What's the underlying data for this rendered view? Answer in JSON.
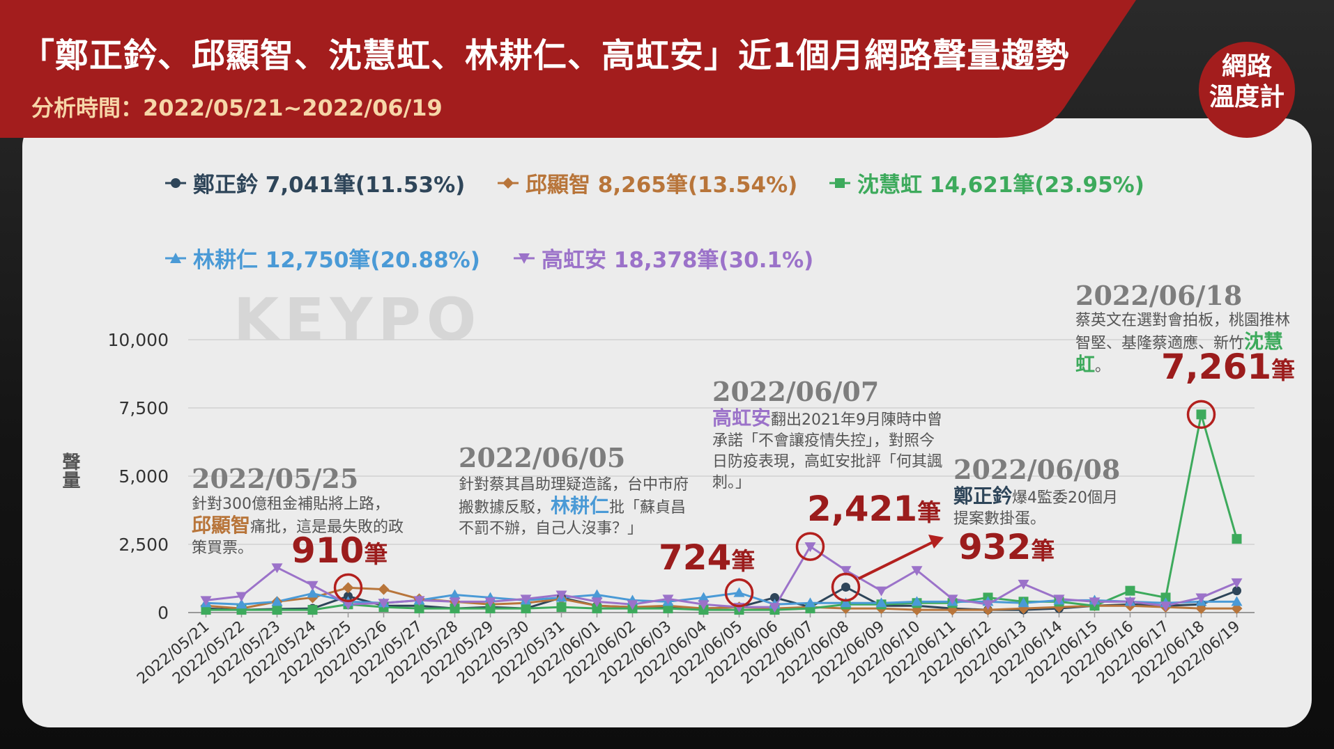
{
  "header": {
    "title": "「鄭正鈐、邱顯智、沈慧虹、林耕仁、高虹安」近1個月網路聲量趨勢",
    "subtitle": "分析時間：2022/05/21~2022/06/19"
  },
  "logo": {
    "line1": "網路",
    "line2": "溫度計"
  },
  "watermark": "KEYPO",
  "colors": {
    "header_red": "#a31d1d",
    "panel": "#ececec",
    "highlight_red": "#9b1c1c"
  },
  "legend": [
    {
      "label": "鄭正鈐 7,041筆(11.53%)",
      "color": "#2e4559",
      "marker": "circle"
    },
    {
      "label": "邱顯智 8,265筆(13.54%)",
      "color": "#b8753a",
      "marker": "diamond"
    },
    {
      "label": "沈慧虹 14,621筆(23.95%)",
      "color": "#3daa5c",
      "marker": "square"
    },
    {
      "label": "林耕仁 12,750筆(20.88%)",
      "color": "#4a9ad6",
      "marker": "triangle-up"
    },
    {
      "label": "高虹安 18,378筆(30.1%)",
      "color": "#9b72c9",
      "marker": "triangle-down"
    }
  ],
  "annotations": [
    {
      "date": "2022/05/25",
      "text_before": "針對300億租金補貼將上路，",
      "name": "邱顯智",
      "text_after": "痛批，這是最失敗的政策買票。",
      "name_color": "#b8753a",
      "count": "910",
      "unit": "筆"
    },
    {
      "date": "2022/06/05",
      "text_before": "針對蔡其昌助理疑造謠，台中市府搬數據反駁，",
      "name": "林耕仁",
      "text_after": "批「蘇貞昌不罰不辦，自己人沒事？」",
      "name_color": "#4a9ad6",
      "count": "724",
      "unit": "筆"
    },
    {
      "date": "2022/06/07",
      "text_before": "",
      "name": "高虹安",
      "text_after": "翻出2021年9月陳時中曾承諾「不會讓疫情失控」，對照今日防疫表現，高虹安批評「何其諷刺。」",
      "name_color": "#9b72c9",
      "count": "2,421",
      "unit": "筆"
    },
    {
      "date": "2022/06/08",
      "text_before": "",
      "name": "鄭正鈐",
      "text_after": "爆4監委20個月提案數掛蛋。",
      "name_color": "#2e4559",
      "count": "932",
      "unit": "筆"
    },
    {
      "date": "2022/06/18",
      "text_before": "蔡英文在選對會拍板，桃園推林智堅、基隆蔡適應、新竹",
      "name": "沈慧虹",
      "text_after": "。",
      "name_color": "#3daa5c",
      "count": "7,261",
      "unit": "筆"
    }
  ],
  "chart_data": {
    "type": "line",
    "ylabel": "聲量",
    "ylim": [
      0,
      10000
    ],
    "yticks": [
      0,
      2500,
      5000,
      7500,
      10000
    ],
    "ytick_labels": [
      "0",
      "2,500",
      "5,000",
      "7,500",
      "10,000"
    ],
    "grid": true,
    "legend_position": "top",
    "x": [
      "2022/05/21",
      "2022/05/22",
      "2022/05/23",
      "2022/05/24",
      "2022/05/25",
      "2022/05/26",
      "2022/05/27",
      "2022/05/28",
      "2022/05/29",
      "2022/05/30",
      "2022/05/31",
      "2022/06/01",
      "2022/06/02",
      "2022/06/03",
      "2022/06/04",
      "2022/06/05",
      "2022/06/06",
      "2022/06/07",
      "2022/06/08",
      "2022/06/09",
      "2022/06/10",
      "2022/06/11",
      "2022/06/12",
      "2022/06/13",
      "2022/06/14",
      "2022/06/15",
      "2022/06/16",
      "2022/06/17",
      "2022/06/18",
      "2022/06/19"
    ],
    "series": [
      {
        "name": "鄭正鈐",
        "color": "#2e4559",
        "marker": "circle",
        "values": [
          150,
          100,
          130,
          150,
          600,
          250,
          250,
          150,
          200,
          150,
          550,
          250,
          200,
          200,
          150,
          200,
          550,
          200,
          932,
          250,
          250,
          150,
          100,
          100,
          150,
          250,
          300,
          250,
          300,
          800
        ]
      },
      {
        "name": "邱顯智",
        "color": "#b8753a",
        "marker": "diamond",
        "values": [
          250,
          150,
          400,
          550,
          910,
          850,
          500,
          400,
          300,
          350,
          500,
          250,
          200,
          250,
          150,
          200,
          150,
          200,
          150,
          150,
          100,
          100,
          100,
          150,
          200,
          250,
          250,
          200,
          150,
          150
        ]
      },
      {
        "name": "沈慧虹",
        "color": "#3daa5c",
        "marker": "square",
        "values": [
          100,
          100,
          100,
          100,
          300,
          200,
          150,
          150,
          150,
          150,
          200,
          150,
          150,
          150,
          100,
          100,
          100,
          150,
          300,
          300,
          350,
          350,
          550,
          400,
          400,
          250,
          800,
          550,
          7261,
          2700
        ]
      },
      {
        "name": "林耕仁",
        "color": "#4a9ad6",
        "marker": "triangle-up",
        "values": [
          350,
          300,
          400,
          700,
          400,
          350,
          450,
          650,
          550,
          450,
          550,
          650,
          450,
          400,
          550,
          724,
          300,
          350,
          350,
          350,
          400,
          400,
          400,
          350,
          450,
          450,
          400,
          350,
          400,
          400
        ]
      },
      {
        "name": "高虹安",
        "color": "#9b72c9",
        "marker": "triangle-down",
        "values": [
          450,
          600,
          1650,
          1000,
          300,
          350,
          450,
          400,
          400,
          500,
          650,
          400,
          300,
          500,
          300,
          200,
          200,
          2421,
          1550,
          800,
          1550,
          500,
          300,
          1050,
          500,
          400,
          400,
          250,
          550,
          1100
        ]
      }
    ]
  }
}
